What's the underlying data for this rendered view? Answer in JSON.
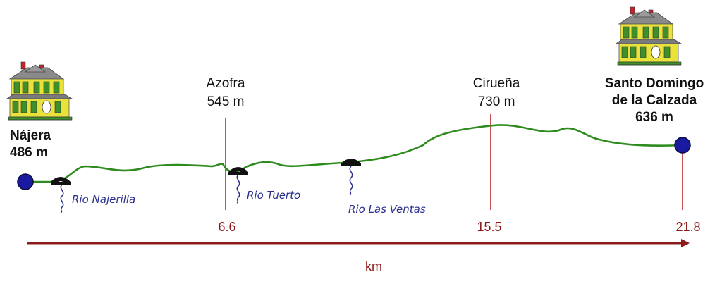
{
  "colors": {
    "profile": "#2e8b1e",
    "marker": "#c0262b",
    "axis": "#8b1a1a",
    "endpoint": "#1a1aa0",
    "river": "#2a2f8f",
    "house_wall": "#e9e23a",
    "house_roof": "#7a7a7a",
    "house_trim": "#3f8f2a"
  },
  "towns": {
    "start": {
      "name": "Nájera",
      "elevation": "486 m",
      "icon": "house-icon"
    },
    "azofra": {
      "name": "Azofra",
      "elevation": "545 m"
    },
    "cirena": {
      "name": "Cirueña",
      "elevation": "730 m"
    },
    "end": {
      "name_line1": "Santo Domingo",
      "name_line2": "de la Calzada",
      "elevation": "636 m",
      "icon": "house-icon"
    }
  },
  "rivers": [
    {
      "name": "Rio Najerilla",
      "icon": "bridge-icon"
    },
    {
      "name": "Rio Tuerto",
      "icon": "bridge-icon"
    },
    {
      "name": "Rio Las Ventas",
      "icon": "bridge-icon"
    }
  ],
  "distances": {
    "azofra": "6.6",
    "cirena": "15.5",
    "end": "21.8"
  },
  "axis": {
    "unit": "km"
  }
}
